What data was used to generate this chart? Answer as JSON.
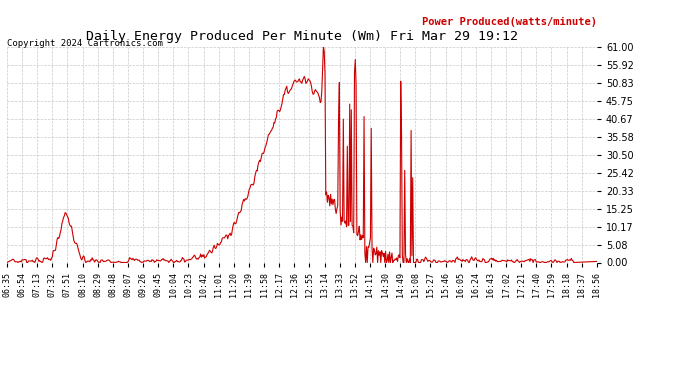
{
  "title": "Daily Energy Produced Per Minute (Wm) Fri Mar 29 19:12",
  "copyright": "Copyright 2024 Cartronics.com",
  "legend_label": "Power Produced(watts/minute)",
  "legend_color": "#cc0000",
  "line_color": "#cc0000",
  "background_color": "#ffffff",
  "grid_color": "#bbbbbb",
  "yticks": [
    0.0,
    5.08,
    10.17,
    15.25,
    20.33,
    25.42,
    30.5,
    35.58,
    40.67,
    45.75,
    50.83,
    55.92,
    61.0
  ],
  "ylim": [
    0.0,
    61.0
  ],
  "xtick_labels": [
    "06:35",
    "06:54",
    "07:13",
    "07:32",
    "07:51",
    "08:10",
    "08:29",
    "08:48",
    "09:07",
    "09:26",
    "09:45",
    "10:04",
    "10:23",
    "10:42",
    "11:01",
    "11:20",
    "11:39",
    "11:58",
    "12:17",
    "12:36",
    "12:55",
    "13:14",
    "13:33",
    "13:52",
    "14:11",
    "14:30",
    "14:49",
    "15:08",
    "15:27",
    "15:46",
    "16:05",
    "16:24",
    "16:43",
    "17:02",
    "17:21",
    "17:40",
    "17:59",
    "18:18",
    "18:37",
    "18:56"
  ]
}
